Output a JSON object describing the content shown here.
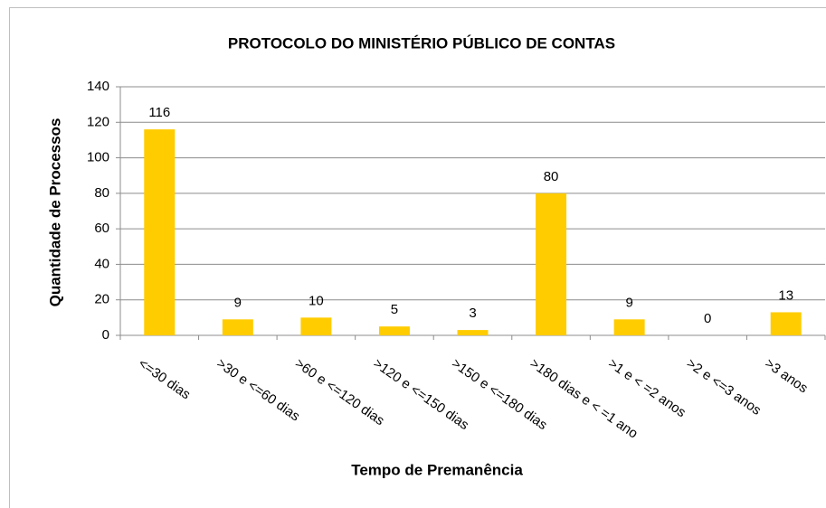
{
  "chart_data": {
    "type": "bar",
    "title": "PROTOCOLO DO MINISTÉRIO PÚBLICO DE CONTAS",
    "x_label": "Tempo de Premanência",
    "y_label": "Quantidade de Processos",
    "categories": [
      "<=30 dias",
      ">30 e <=60 dias",
      ">60 e <=120 dias",
      ">120 e <=150 dias",
      ">150 e <=180 dias",
      ">180 dias e < =1 ano",
      ">1 e < =2 anos",
      ">2 e <=3 anos",
      ">3 anos"
    ],
    "values": [
      116,
      9,
      10,
      5,
      3,
      80,
      9,
      0,
      13
    ],
    "color": "#ffcc00",
    "ylim": [
      0,
      140
    ],
    "yticks": [
      0,
      20,
      40,
      60,
      80,
      100,
      120,
      140
    ],
    "grid": true
  }
}
